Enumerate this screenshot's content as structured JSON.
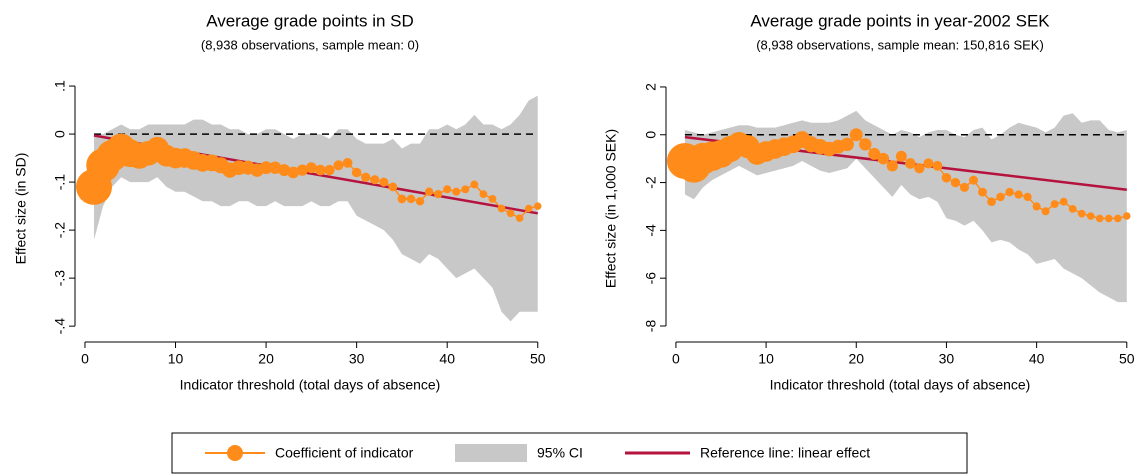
{
  "chart_data": [
    {
      "type": "line",
      "title": "Average grade points in SD",
      "subtitle": "(8,938 observations, sample mean: 0)",
      "xlabel": "Indicator threshold (total days of absence)",
      "ylabel": "Effect size (in SD)",
      "xlim": [
        -1.1,
        50.8
      ],
      "ylim": [
        -0.433,
        0.123
      ],
      "xticks": [
        0,
        10,
        20,
        30,
        40,
        50
      ],
      "yticks": [
        {
          "value": 0.1,
          "label": ".1"
        },
        0,
        {
          "value": -0.1,
          "label": "-.1"
        },
        {
          "value": -0.2,
          "label": "-.2"
        },
        {
          "value": -0.3,
          "label": "-.3"
        },
        {
          "value": -0.4,
          "label": "-.4"
        }
      ],
      "hline": 0,
      "x": [
        1,
        2,
        3,
        4,
        5,
        6,
        7,
        8,
        9,
        10,
        11,
        12,
        13,
        14,
        15,
        16,
        17,
        18,
        19,
        20,
        21,
        22,
        23,
        24,
        25,
        26,
        27,
        28,
        29,
        30,
        31,
        32,
        33,
        34,
        35,
        36,
        37,
        38,
        39,
        40,
        41,
        42,
        43,
        44,
        45,
        46,
        47,
        48,
        49,
        50
      ],
      "series": [
        {
          "name": "Coefficient of indicator",
          "color": "#ff8c1a",
          "values": [
            -0.11,
            -0.065,
            -0.045,
            -0.03,
            -0.04,
            -0.045,
            -0.04,
            -0.03,
            -0.045,
            -0.05,
            -0.05,
            -0.055,
            -0.06,
            -0.06,
            -0.065,
            -0.075,
            -0.07,
            -0.07,
            -0.075,
            -0.07,
            -0.07,
            -0.075,
            -0.08,
            -0.075,
            -0.07,
            -0.075,
            -0.075,
            -0.065,
            -0.06,
            -0.08,
            -0.09,
            -0.095,
            -0.1,
            -0.11,
            -0.135,
            -0.135,
            -0.14,
            -0.12,
            -0.125,
            -0.115,
            -0.12,
            -0.115,
            -0.105,
            -0.125,
            -0.135,
            -0.155,
            -0.165,
            -0.175,
            -0.155,
            -0.15
          ]
        },
        {
          "name": "95% CI",
          "color": "#c8c8c8",
          "upper": [
            0.0,
            0.0,
            0.01,
            0.02,
            0.01,
            0.01,
            0.02,
            0.02,
            0.02,
            0.02,
            0.02,
            0.03,
            0.03,
            0.02,
            0.02,
            0.01,
            0.01,
            0.0,
            0.0,
            0.01,
            0.01,
            0.0,
            -0.01,
            0.0,
            0.0,
            0.0,
            -0.01,
            0.01,
            0.01,
            -0.01,
            -0.02,
            -0.02,
            -0.02,
            -0.01,
            -0.03,
            -0.02,
            -0.02,
            0.01,
            0.01,
            0.02,
            0.01,
            0.02,
            0.04,
            0.02,
            0.02,
            0.01,
            0.02,
            0.04,
            0.07,
            0.08
          ],
          "lower": [
            -0.22,
            -0.15,
            -0.11,
            -0.09,
            -0.1,
            -0.1,
            -0.1,
            -0.09,
            -0.11,
            -0.12,
            -0.12,
            -0.13,
            -0.14,
            -0.14,
            -0.15,
            -0.15,
            -0.14,
            -0.14,
            -0.15,
            -0.15,
            -0.14,
            -0.15,
            -0.15,
            -0.15,
            -0.14,
            -0.15,
            -0.15,
            -0.14,
            -0.14,
            -0.17,
            -0.18,
            -0.19,
            -0.2,
            -0.22,
            -0.25,
            -0.26,
            -0.27,
            -0.25,
            -0.26,
            -0.28,
            -0.3,
            -0.29,
            -0.28,
            -0.3,
            -0.32,
            -0.37,
            -0.39,
            -0.37,
            -0.37,
            -0.37
          ]
        },
        {
          "name": "Reference line: linear effect",
          "color": "#b5123e",
          "x": [
            1,
            50
          ],
          "values": [
            -0.003,
            -0.165
          ]
        }
      ]
    },
    {
      "type": "line",
      "title": "Average grade points in year-2002 SEK",
      "subtitle": "(8,938 observations, sample mean: 150,816 SEK)",
      "xlabel": "Indicator threshold (total days of absence)",
      "ylabel": "Effect size (in 1,000 SEK)",
      "xlim": [
        -1.1,
        50.8
      ],
      "ylim": [
        -8.67,
        2.5
      ],
      "xticks": [
        0,
        10,
        20,
        30,
        40,
        50
      ],
      "yticks": [
        2,
        0,
        -2,
        -4,
        -6,
        -8
      ],
      "hline": 0,
      "x": [
        1,
        2,
        3,
        4,
        5,
        6,
        7,
        8,
        9,
        10,
        11,
        12,
        13,
        14,
        15,
        16,
        17,
        18,
        19,
        20,
        21,
        22,
        23,
        24,
        25,
        26,
        27,
        28,
        29,
        30,
        31,
        32,
        33,
        34,
        35,
        36,
        37,
        38,
        39,
        40,
        41,
        42,
        43,
        44,
        45,
        46,
        47,
        48,
        49,
        50
      ],
      "series": [
        {
          "color": "#ff8c1a",
          "values": [
            -1.1,
            -1.3,
            -1.0,
            -0.9,
            -0.8,
            -0.6,
            -0.4,
            -0.5,
            -0.8,
            -0.7,
            -0.6,
            -0.5,
            -0.4,
            -0.2,
            -0.4,
            -0.5,
            -0.6,
            -0.5,
            -0.4,
            0.0,
            -0.4,
            -0.8,
            -1.0,
            -1.3,
            -0.9,
            -1.2,
            -1.4,
            -1.2,
            -1.3,
            -1.8,
            -2.0,
            -2.2,
            -1.9,
            -2.4,
            -2.8,
            -2.6,
            -2.4,
            -2.5,
            -2.6,
            -3.0,
            -3.2,
            -2.9,
            -2.8,
            -3.1,
            -3.3,
            -3.4,
            -3.5,
            -3.5,
            -3.5,
            -3.4
          ]
        },
        {
          "color": "#c8c8c8",
          "upper": [
            0.2,
            0.1,
            0.0,
            0.1,
            0.2,
            0.3,
            0.4,
            0.4,
            0.3,
            0.3,
            0.3,
            0.4,
            0.5,
            0.6,
            0.5,
            0.5,
            0.5,
            0.6,
            0.8,
            1.0,
            0.6,
            0.4,
            0.2,
            0.0,
            0.2,
            0.1,
            -0.1,
            0.1,
            0.2,
            0.2,
            0.0,
            -0.1,
            0.2,
            0.3,
            -0.2,
            0.0,
            0.3,
            0.5,
            0.4,
            0.3,
            0.1,
            0.3,
            0.8,
            0.9,
            0.5,
            0.6,
            0.6,
            0.2,
            0.1,
            0.2
          ],
          "lower": [
            -2.5,
            -2.7,
            -2.2,
            -1.9,
            -1.7,
            -1.5,
            -1.3,
            -1.5,
            -1.7,
            -1.6,
            -1.5,
            -1.4,
            -1.3,
            -1.1,
            -1.3,
            -1.5,
            -1.6,
            -1.5,
            -1.4,
            -1.0,
            -1.4,
            -1.8,
            -2.2,
            -2.6,
            -2.1,
            -2.5,
            -2.7,
            -2.6,
            -2.8,
            -3.5,
            -3.6,
            -3.8,
            -3.6,
            -4.0,
            -4.5,
            -4.4,
            -4.5,
            -4.8,
            -5.0,
            -5.4,
            -5.3,
            -5.2,
            -5.6,
            -5.8,
            -6.0,
            -6.3,
            -6.6,
            -6.8,
            -7.0,
            -7.0
          ]
        },
        {
          "color": "#b5123e",
          "x": [
            1,
            50
          ],
          "values": [
            -0.1,
            -2.3
          ]
        }
      ]
    }
  ]
}
